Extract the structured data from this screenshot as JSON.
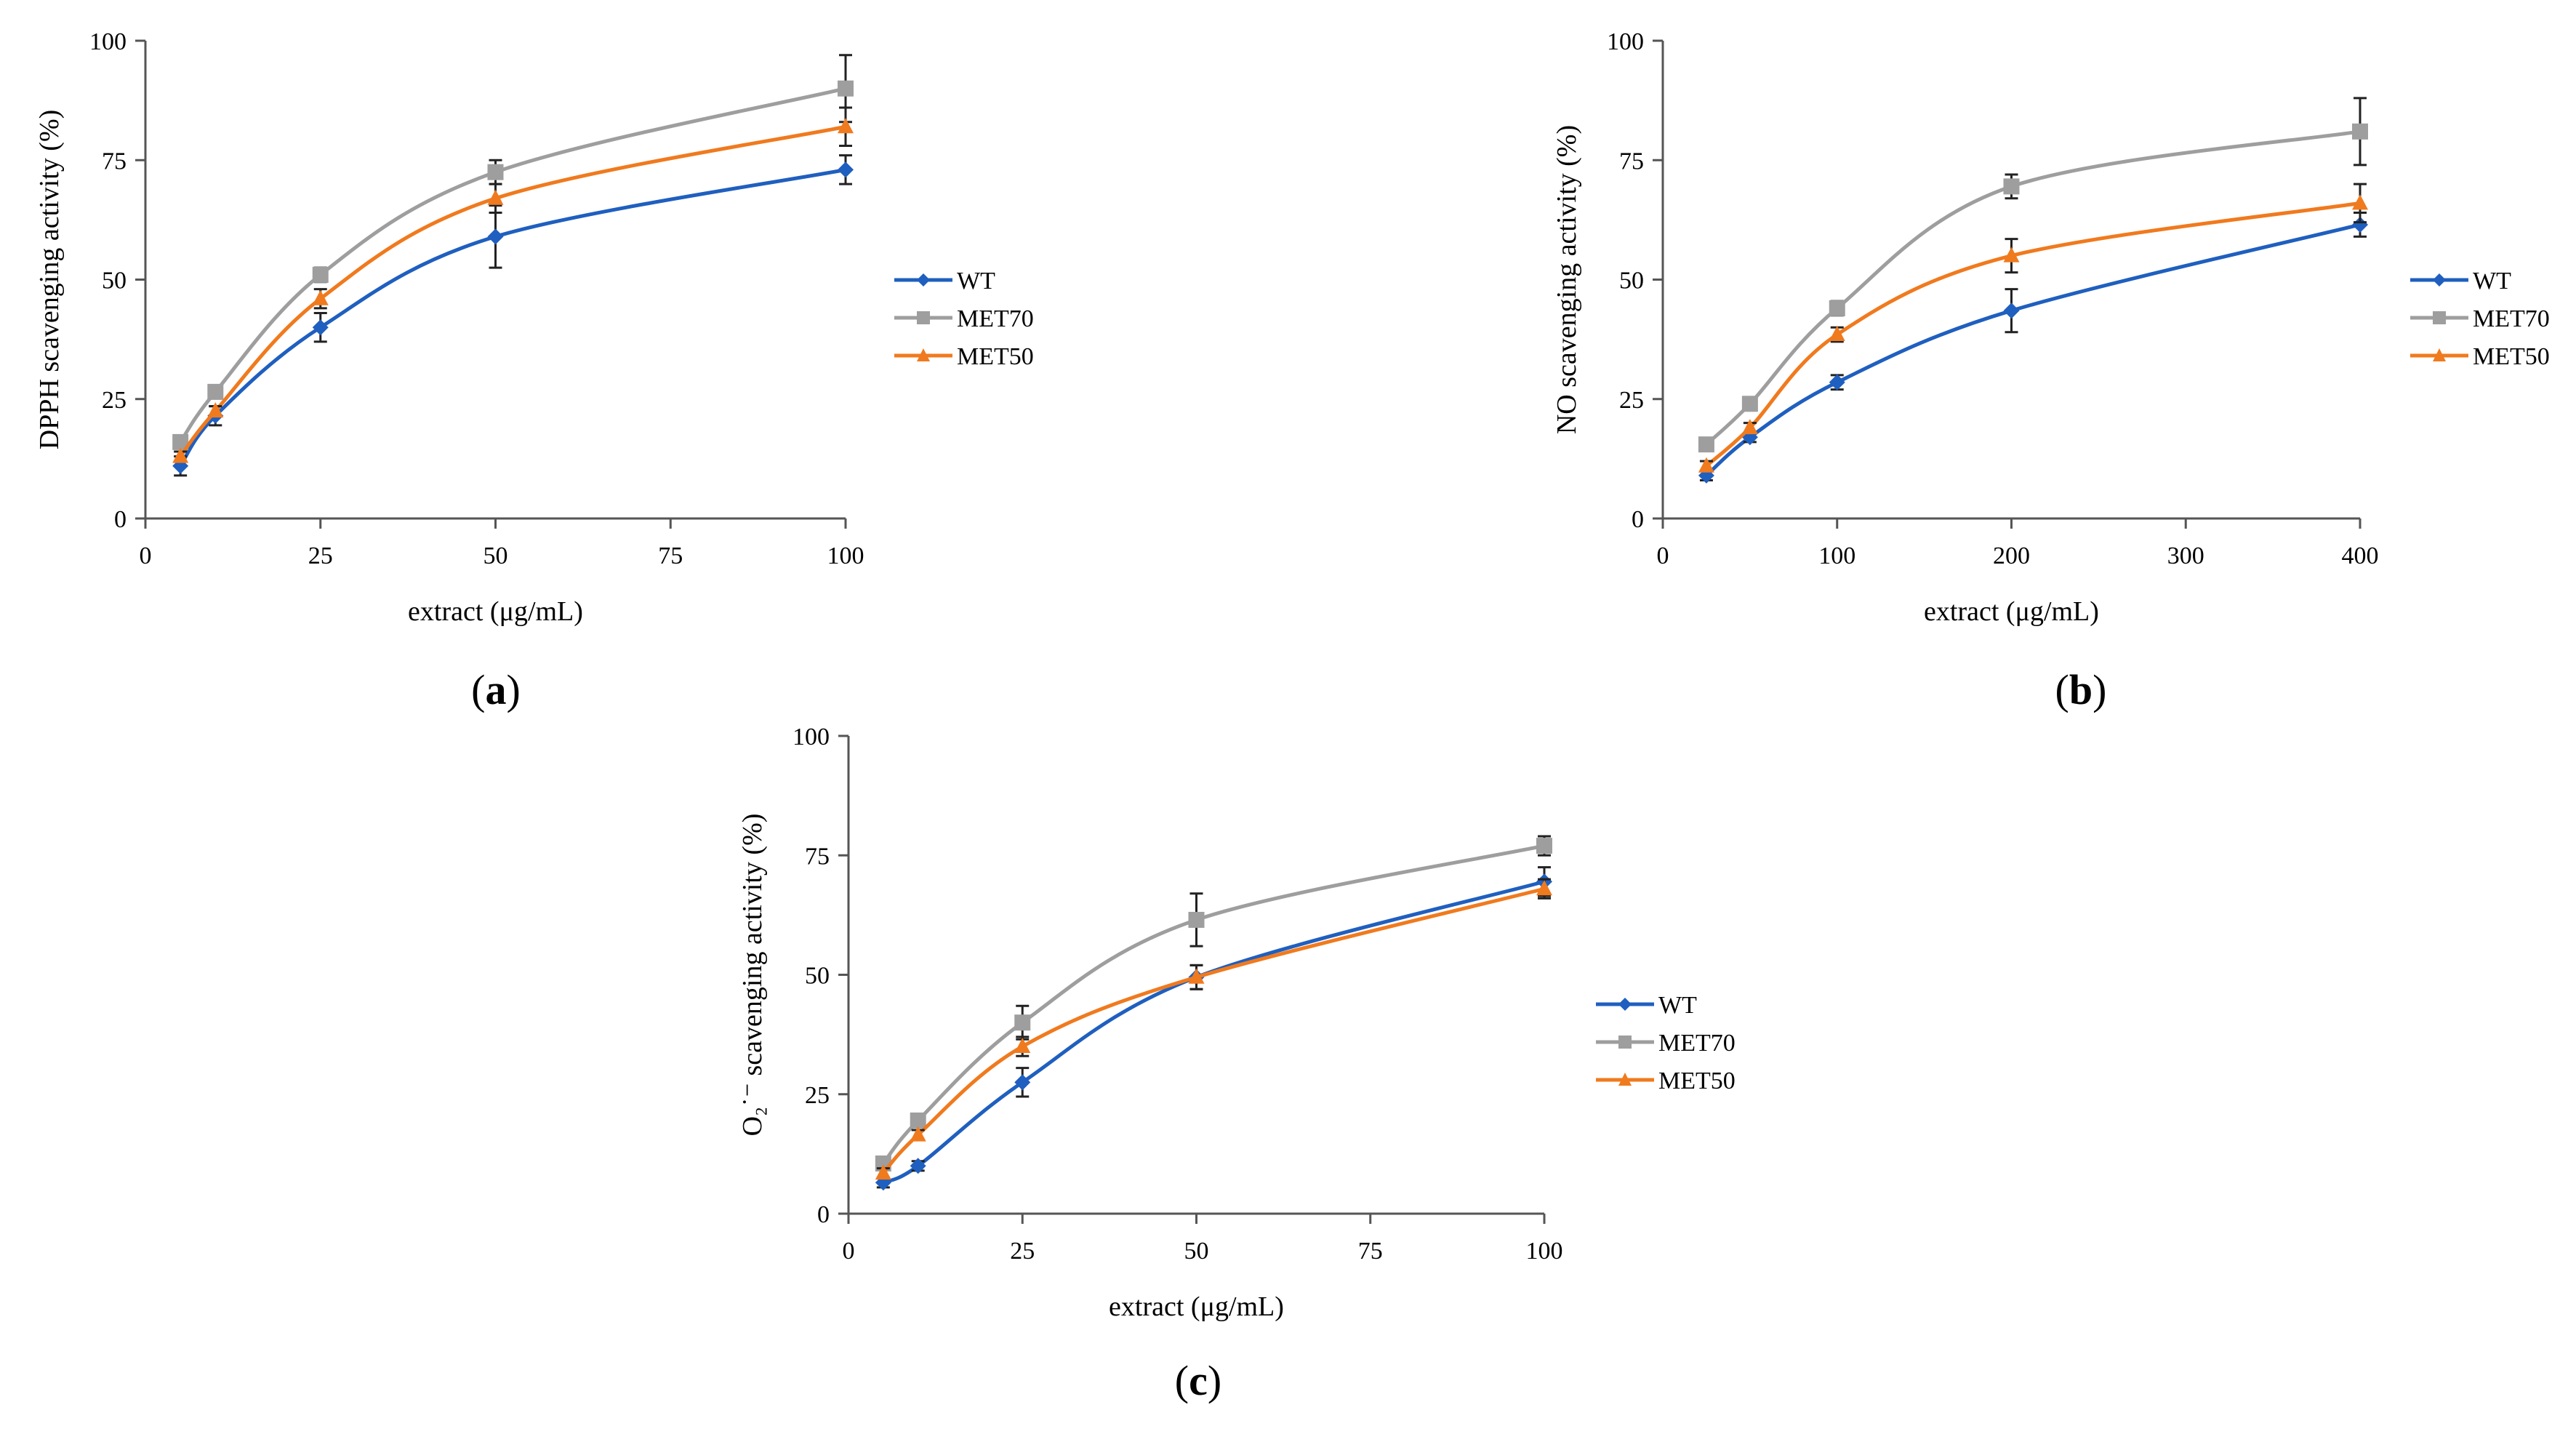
{
  "colors": {
    "WT": "#1f5fbf",
    "MET70": "#9e9e9e",
    "MET50": "#f07a1e",
    "axis": "#555555"
  },
  "legend_labels": [
    "WT",
    "MET70",
    "MET50"
  ],
  "chart_data": [
    {
      "panel": "(a)",
      "panel_letter": "a",
      "type": "line",
      "xlabel": "extract (μg/mL)",
      "ylabel": "DPPH scavenging activity (%)",
      "xticks": [
        0,
        25,
        50,
        75,
        100
      ],
      "yticks": [
        0,
        25,
        50,
        75,
        100
      ],
      "xlim": [
        0,
        100
      ],
      "ylim": [
        0,
        100
      ],
      "legend_position": "right",
      "x": [
        5,
        10,
        25,
        50,
        100
      ],
      "series": [
        {
          "name": "WT",
          "values": [
            11,
            21.5,
            40,
            59,
            73
          ],
          "errors": [
            2,
            2,
            3,
            6.5,
            3
          ]
        },
        {
          "name": "MET70",
          "values": [
            16,
            26.5,
            51,
            72.5,
            90
          ],
          "errors": [
            1,
            1,
            1.5,
            2.5,
            7
          ]
        },
        {
          "name": "MET50",
          "values": [
            13,
            22.5,
            46,
            67,
            82
          ],
          "errors": [
            1,
            1,
            2,
            3,
            4
          ]
        }
      ]
    },
    {
      "panel": "(b)",
      "panel_letter": "b",
      "type": "line",
      "xlabel": "extract (μg/mL)",
      "ylabel": "NO scavenging activity (%)",
      "xticks": [
        0,
        100,
        200,
        300,
        400
      ],
      "yticks": [
        0,
        25,
        50,
        75,
        100
      ],
      "xlim": [
        0,
        400
      ],
      "ylim": [
        0,
        100
      ],
      "legend_position": "right",
      "x": [
        25,
        50,
        100,
        200,
        400
      ],
      "series": [
        {
          "name": "WT",
          "values": [
            9,
            17,
            28.5,
            43.5,
            61.5
          ],
          "errors": [
            1,
            1,
            1.5,
            4.5,
            2.5
          ]
        },
        {
          "name": "MET70",
          "values": [
            15.5,
            24,
            44,
            69.5,
            81
          ],
          "errors": [
            1,
            1,
            1.5,
            2.5,
            7
          ]
        },
        {
          "name": "MET50",
          "values": [
            11,
            19,
            38.5,
            55,
            66
          ],
          "errors": [
            1,
            1,
            1.5,
            3.5,
            4
          ]
        }
      ]
    },
    {
      "panel": "(c)",
      "panel_letter": "c",
      "type": "line",
      "xlabel": "extract (μg/mL)",
      "ylabel": "O₂˙⁻ scavenging activity (%)",
      "xticks": [
        0,
        25,
        50,
        75,
        100
      ],
      "yticks": [
        0,
        25,
        50,
        75,
        100
      ],
      "xlim": [
        0,
        100
      ],
      "ylim": [
        0,
        100
      ],
      "legend_position": "right",
      "x": [
        5,
        10,
        25,
        50,
        100
      ],
      "series": [
        {
          "name": "WT",
          "values": [
            6.5,
            10,
            27.5,
            49.5,
            69.5
          ],
          "errors": [
            1,
            1,
            3,
            2.5,
            3
          ]
        },
        {
          "name": "MET70",
          "values": [
            10.5,
            19.5,
            40,
            61.5,
            77
          ],
          "errors": [
            1,
            1,
            3.5,
            5.5,
            2
          ]
        },
        {
          "name": "MET50",
          "values": [
            8.5,
            16.5,
            35,
            49.5,
            68
          ],
          "errors": [
            1,
            1,
            2,
            2.5,
            2
          ]
        }
      ]
    }
  ]
}
